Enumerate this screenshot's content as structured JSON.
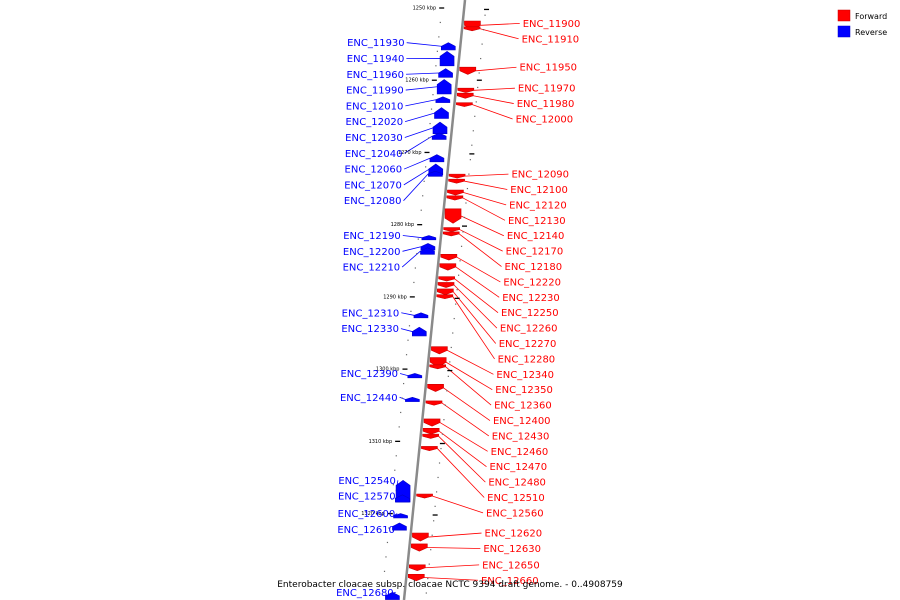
{
  "caption": "Enterobacter cloacae subsp. cloacae NCTC 9394 draft genome. - 0..4908759",
  "legend": [
    {
      "label": "Forward",
      "color": "#ff0000"
    },
    {
      "label": "Reverse",
      "color": "#0000ff"
    }
  ],
  "ticks": [
    {
      "label": "1250 kbp",
      "pos": 1250
    },
    {
      "label": "1260 kbp",
      "pos": 1260
    },
    {
      "label": "1270 kbp",
      "pos": 1270
    },
    {
      "label": "1280 kbp",
      "pos": 1280
    },
    {
      "label": "1290 kbp",
      "pos": 1290
    },
    {
      "label": "1300 kbp",
      "pos": 1300
    },
    {
      "label": "1310 kbp",
      "pos": 1310
    },
    {
      "label": "1320 kbp",
      "pos": 1320
    }
  ],
  "forward_genes": [
    {
      "label": "ENC_11900",
      "pos": 1251.8,
      "len": 1.2
    },
    {
      "label": "ENC_11910",
      "pos": 1252.6,
      "len": 0.4
    },
    {
      "label": "ENC_11950",
      "pos": 1258.2,
      "len": 1.0
    },
    {
      "label": "ENC_11970",
      "pos": 1261.1,
      "len": 0.6
    },
    {
      "label": "ENC_11980",
      "pos": 1261.8,
      "len": 0.7
    },
    {
      "label": "ENC_12000",
      "pos": 1263.1,
      "len": 0.5
    },
    {
      "label": "ENC_12090",
      "pos": 1273.0,
      "len": 0.5
    },
    {
      "label": "ENC_12100",
      "pos": 1273.7,
      "len": 0.4
    },
    {
      "label": "ENC_12120",
      "pos": 1275.2,
      "len": 0.7
    },
    {
      "label": "ENC_12130",
      "pos": 1276.0,
      "len": 0.6
    },
    {
      "label": "ENC_12140",
      "pos": 1277.8,
      "len": 2.0
    },
    {
      "label": "ENC_12170",
      "pos": 1280.4,
      "len": 0.5
    },
    {
      "label": "ENC_12180",
      "pos": 1281.0,
      "len": 0.4
    },
    {
      "label": "ENC_12220",
      "pos": 1284.1,
      "len": 0.8
    },
    {
      "label": "ENC_12230",
      "pos": 1285.4,
      "len": 0.9
    },
    {
      "label": "ENC_12250",
      "pos": 1287.2,
      "len": 0.6
    },
    {
      "label": "ENC_12260",
      "pos": 1288.0,
      "len": 0.7
    },
    {
      "label": "ENC_12270",
      "pos": 1288.9,
      "len": 0.8
    },
    {
      "label": "ENC_12280",
      "pos": 1289.7,
      "len": 0.4
    },
    {
      "label": "ENC_12340",
      "pos": 1296.9,
      "len": 1.0
    },
    {
      "label": "ENC_12350",
      "pos": 1298.4,
      "len": 1.3
    },
    {
      "label": "ENC_12360",
      "pos": 1299.4,
      "len": 0.5
    },
    {
      "label": "ENC_12400",
      "pos": 1302.1,
      "len": 1.0
    },
    {
      "label": "ENC_12430",
      "pos": 1304.4,
      "len": 0.6
    },
    {
      "label": "ENC_12460",
      "pos": 1306.9,
      "len": 1.0
    },
    {
      "label": "ENC_12470",
      "pos": 1308.2,
      "len": 0.8
    },
    {
      "label": "ENC_12480",
      "pos": 1309.0,
      "len": 0.6
    },
    {
      "label": "ENC_12510",
      "pos": 1310.7,
      "len": 0.6
    },
    {
      "label": "ENC_12560",
      "pos": 1317.3,
      "len": 0.5
    },
    {
      "label": "ENC_12620",
      "pos": 1322.7,
      "len": 1.1
    },
    {
      "label": "ENC_12630",
      "pos": 1324.2,
      "len": 1.0
    },
    {
      "label": "ENC_12650",
      "pos": 1327.1,
      "len": 0.8
    },
    {
      "label": "ENC_12660",
      "pos": 1328.4,
      "len": 0.9
    }
  ],
  "reverse_genes": [
    {
      "label": "ENC_11930",
      "pos": 1254.8,
      "len": 1.0
    },
    {
      "label": "ENC_11940",
      "pos": 1256.0,
      "len": 2.0
    },
    {
      "label": "ENC_11960",
      "pos": 1258.4,
      "len": 1.2
    },
    {
      "label": "ENC_11990",
      "pos": 1259.9,
      "len": 2.0
    },
    {
      "label": "ENC_12010",
      "pos": 1262.3,
      "len": 0.8
    },
    {
      "label": "ENC_12020",
      "pos": 1263.8,
      "len": 1.5
    },
    {
      "label": "ENC_12030",
      "pos": 1265.8,
      "len": 1.6
    },
    {
      "label": "ENC_12040",
      "pos": 1267.3,
      "len": 0.9
    },
    {
      "label": "ENC_12060",
      "pos": 1270.3,
      "len": 1.0
    },
    {
      "label": "ENC_12070",
      "pos": 1271.6,
      "len": 1.5
    },
    {
      "label": "ENC_12080",
      "pos": 1272.6,
      "len": 0.7
    },
    {
      "label": "ENC_12190",
      "pos": 1281.5,
      "len": 0.6
    },
    {
      "label": "ENC_12200",
      "pos": 1282.6,
      "len": 0.9
    },
    {
      "label": "ENC_12210",
      "pos": 1283.2,
      "len": 0.9
    },
    {
      "label": "ENC_12310",
      "pos": 1292.2,
      "len": 0.7
    },
    {
      "label": "ENC_12330",
      "pos": 1294.2,
      "len": 1.2
    },
    {
      "label": "ENC_12390",
      "pos": 1300.6,
      "len": 0.6
    },
    {
      "label": "ENC_12440",
      "pos": 1303.9,
      "len": 0.6
    },
    {
      "label": "ENC_12540",
      "pos": 1315.4,
      "len": 3.0
    },
    {
      "label": "ENC_12570",
      "pos": 1317.4,
      "len": 1.0
    },
    {
      "label": "ENC_12600",
      "pos": 1320.0,
      "len": 0.6
    },
    {
      "label": "ENC_12610",
      "pos": 1321.3,
      "len": 1.0
    },
    {
      "label": "ENC_12680",
      "pos": 1330.9,
      "len": 1.0
    }
  ]
}
